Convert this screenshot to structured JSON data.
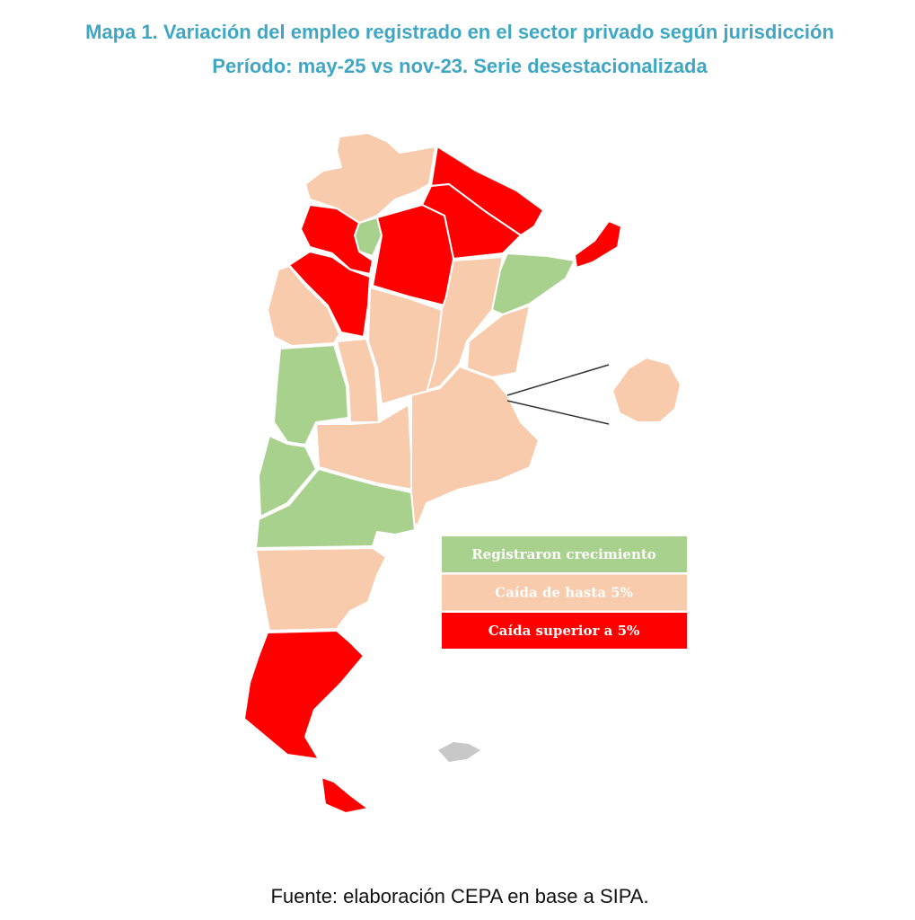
{
  "title": {
    "line1": "Mapa 1. Variación del empleo registrado en el sector privado según jurisdicción",
    "line2": "Período: may-25 vs nov-23. Serie desestacionalizada"
  },
  "legend": {
    "items": [
      {
        "label": "Registraron crecimiento",
        "color": "#a9d18e"
      },
      {
        "label": "Caída de hasta 5%",
        "color": "#f8cbad"
      },
      {
        "label": "Caída superior a 5%",
        "color": "#ff0000"
      }
    ]
  },
  "source": "Fuente: elaboración CEPA en base a SIPA."
}
